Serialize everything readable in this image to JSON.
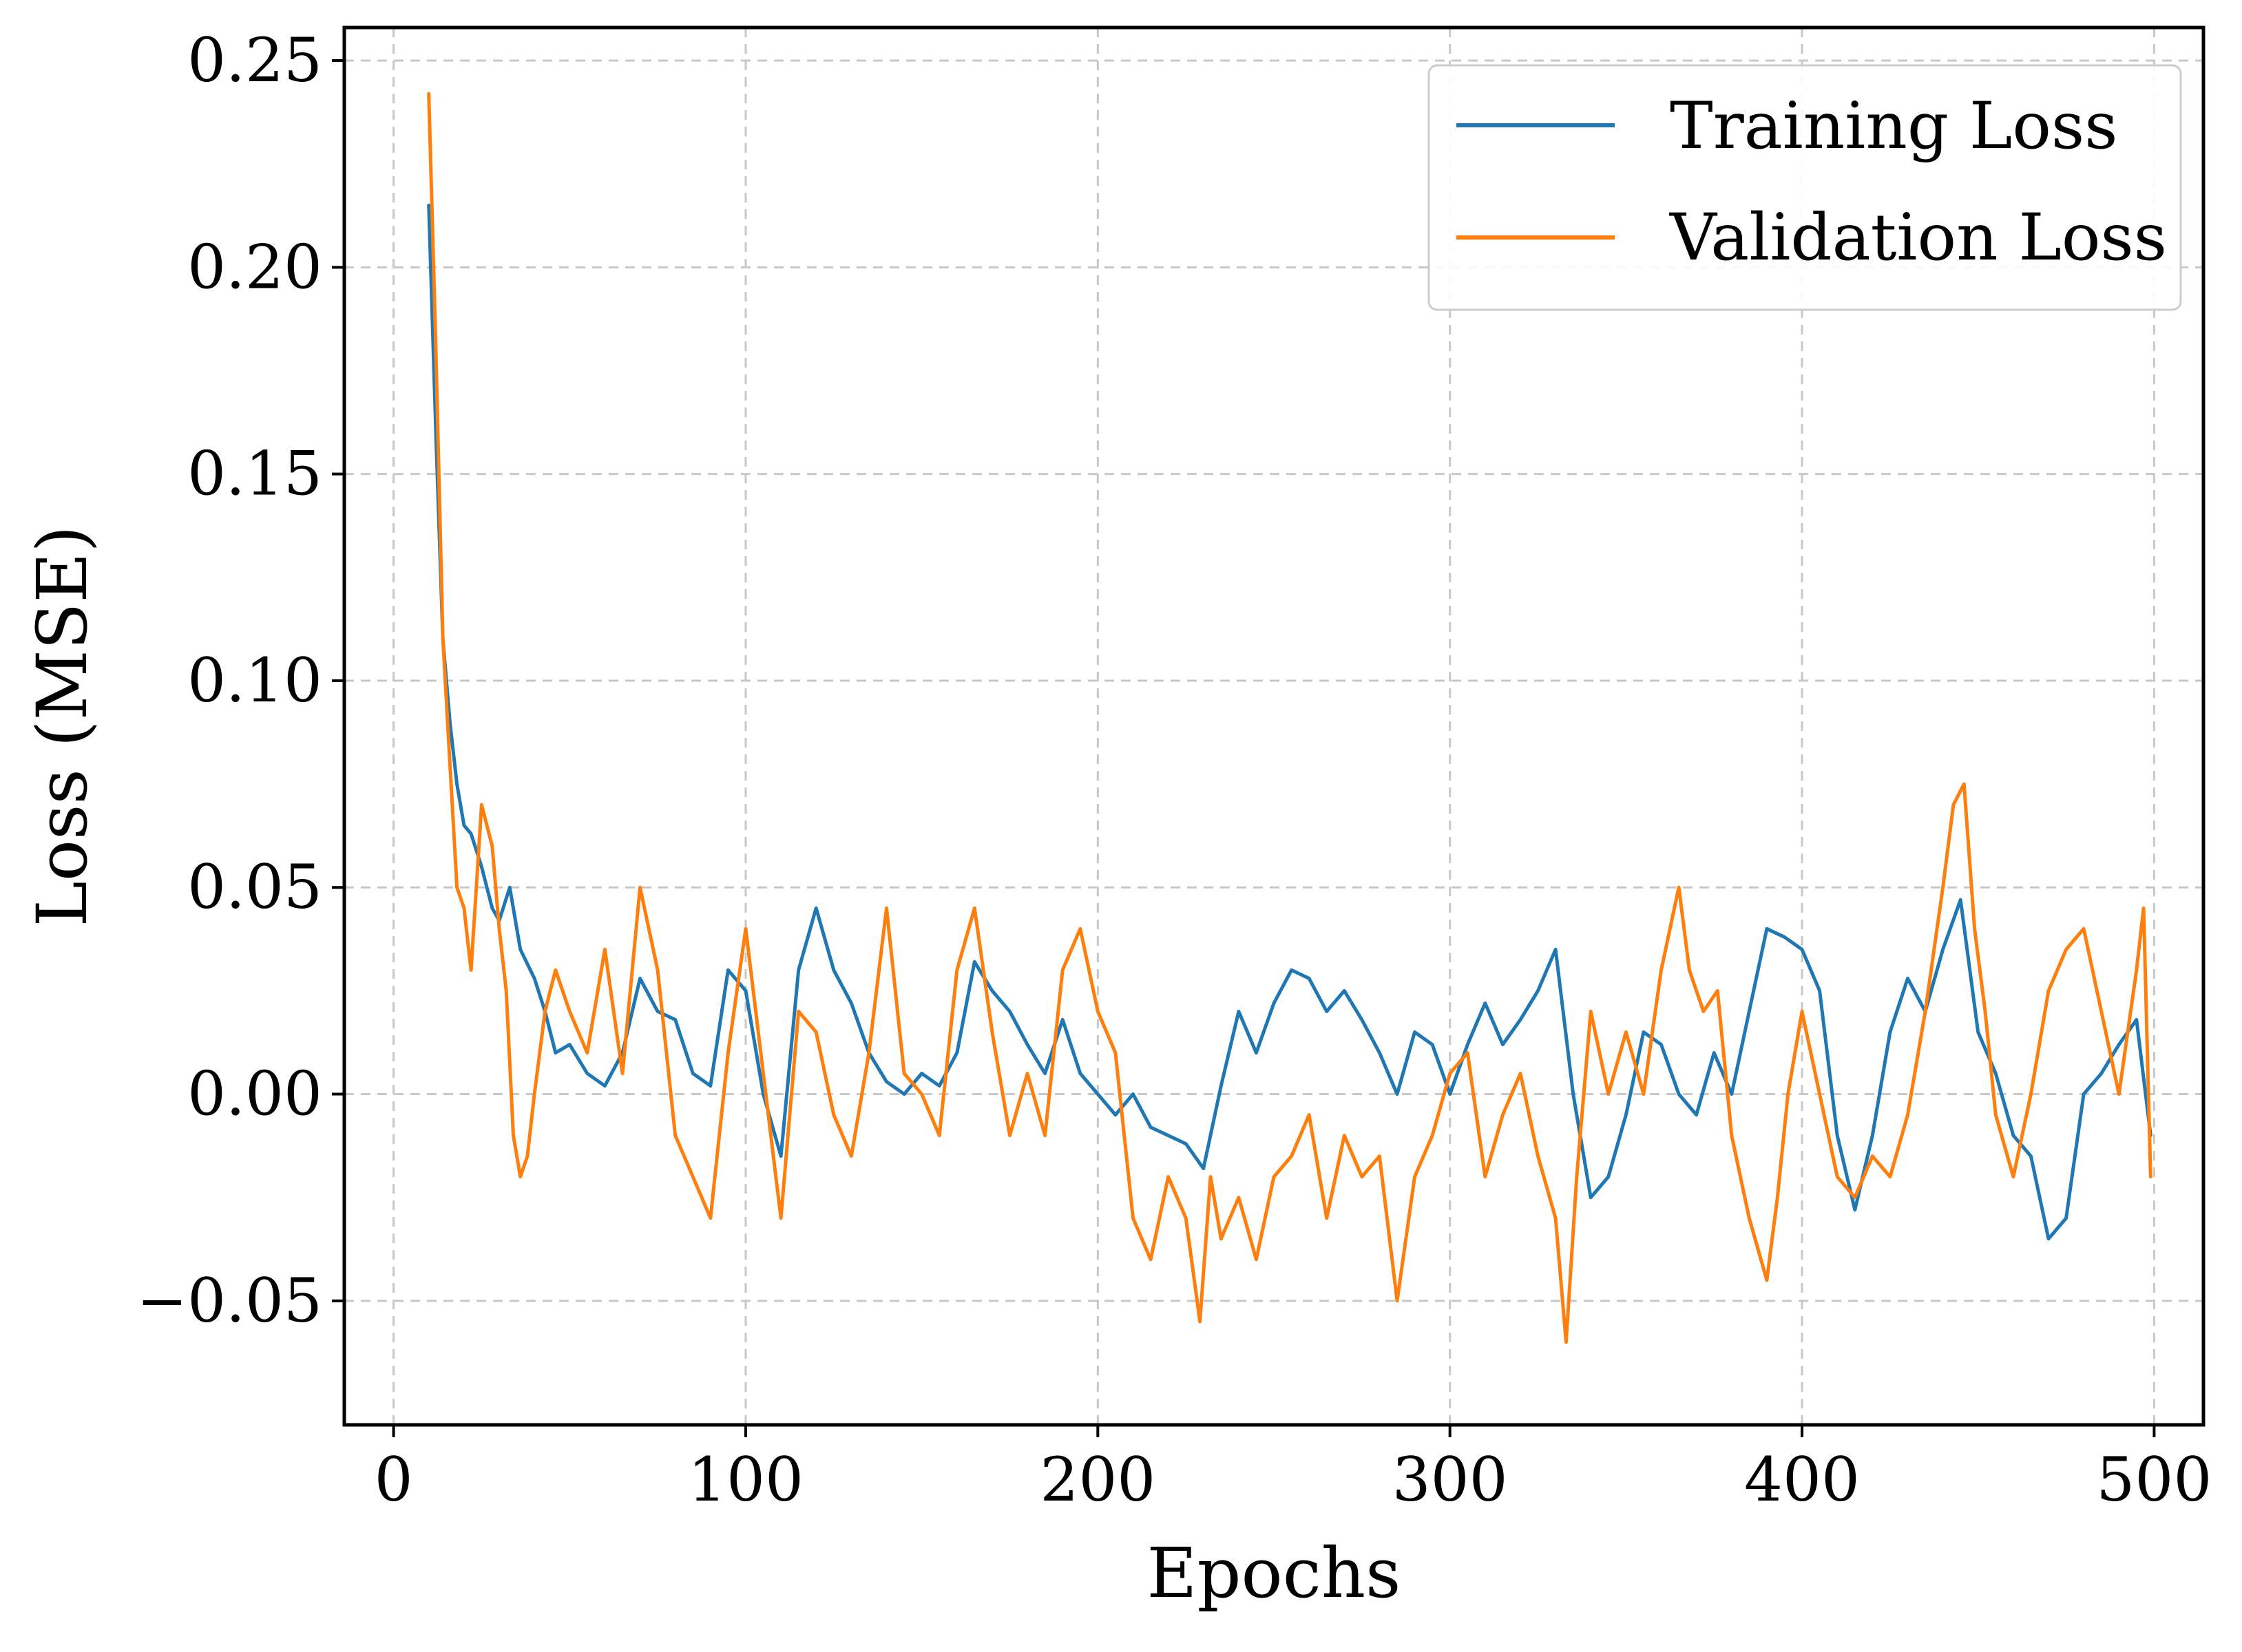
{
  "chart_data": {
    "type": "line",
    "title": "",
    "xlabel": "Epochs",
    "ylabel": "Loss (MSE)",
    "xlim": [
      -14,
      514
    ],
    "ylim": [
      -0.08,
      0.258
    ],
    "xticks": [
      0,
      100,
      200,
      300,
      400,
      500
    ],
    "xtick_labels": [
      "0",
      "100",
      "200",
      "300",
      "400",
      "500"
    ],
    "yticks": [
      -0.05,
      0.0,
      0.05,
      0.1,
      0.15,
      0.2,
      0.25
    ],
    "ytick_labels": [
      "−0.05",
      "0.00",
      "0.05",
      "0.10",
      "0.15",
      "0.20",
      "0.25"
    ],
    "grid": true,
    "legend_position": "top-right",
    "series": [
      {
        "name": "Training Loss",
        "color": "#1f77b4",
        "x": [
          10,
          12,
          14,
          16,
          18,
          20,
          22,
          25,
          28,
          30,
          33,
          36,
          40,
          43,
          46,
          50,
          55,
          60,
          65,
          70,
          75,
          80,
          85,
          90,
          95,
          100,
          105,
          110,
          115,
          120,
          125,
          130,
          135,
          140,
          145,
          150,
          155,
          160,
          165,
          170,
          175,
          180,
          185,
          190,
          195,
          200,
          205,
          210,
          215,
          220,
          225,
          230,
          235,
          240,
          245,
          250,
          255,
          260,
          265,
          270,
          275,
          280,
          285,
          290,
          295,
          300,
          305,
          310,
          315,
          320,
          325,
          330,
          335,
          340,
          345,
          350,
          355,
          360,
          365,
          370,
          375,
          380,
          385,
          390,
          395,
          400,
          405,
          410,
          415,
          420,
          425,
          430,
          435,
          440,
          445,
          450,
          455,
          460,
          465,
          470,
          475,
          480,
          485,
          490,
          495,
          499
        ],
        "y": [
          0.215,
          0.16,
          0.11,
          0.09,
          0.075,
          0.065,
          0.063,
          0.055,
          0.045,
          0.042,
          0.05,
          0.035,
          0.028,
          0.02,
          0.01,
          0.012,
          0.005,
          0.002,
          0.01,
          0.028,
          0.02,
          0.018,
          0.005,
          0.002,
          0.03,
          0.025,
          0.0,
          -0.015,
          0.03,
          0.045,
          0.03,
          0.022,
          0.01,
          0.003,
          0.0,
          0.005,
          0.002,
          0.01,
          0.032,
          0.025,
          0.02,
          0.012,
          0.005,
          0.018,
          0.005,
          0.0,
          -0.005,
          0.0,
          -0.008,
          -0.01,
          -0.012,
          -0.018,
          0.002,
          0.02,
          0.01,
          0.022,
          0.03,
          0.028,
          0.02,
          0.025,
          0.018,
          0.01,
          0.0,
          0.015,
          0.012,
          0.0,
          0.012,
          0.022,
          0.012,
          0.018,
          0.025,
          0.035,
          0.0,
          -0.025,
          -0.02,
          -0.005,
          0.015,
          0.012,
          0.0,
          -0.005,
          0.01,
          0.0,
          0.02,
          0.04,
          0.038,
          0.035,
          0.025,
          -0.01,
          -0.028,
          -0.01,
          0.015,
          0.028,
          0.02,
          0.035,
          0.047,
          0.015,
          0.005,
          -0.01,
          -0.015,
          -0.035,
          -0.03,
          0.0,
          0.005,
          0.012,
          0.018,
          -0.01
        ]
      },
      {
        "name": "Validation Loss",
        "color": "#ff7f0e",
        "x": [
          10,
          12,
          14,
          16,
          18,
          20,
          22,
          25,
          28,
          30,
          32,
          34,
          36,
          38,
          40,
          43,
          46,
          50,
          55,
          60,
          65,
          70,
          75,
          80,
          85,
          90,
          95,
          100,
          105,
          110,
          115,
          120,
          125,
          130,
          135,
          140,
          145,
          150,
          155,
          160,
          165,
          170,
          175,
          180,
          185,
          190,
          195,
          200,
          205,
          210,
          215,
          220,
          225,
          229,
          232,
          235,
          240,
          245,
          250,
          255,
          260,
          265,
          270,
          275,
          280,
          285,
          290,
          295,
          300,
          305,
          310,
          315,
          320,
          325,
          330,
          333,
          336,
          340,
          345,
          350,
          355,
          360,
          365,
          368,
          372,
          376,
          380,
          385,
          390,
          393,
          396,
          400,
          405,
          410,
          415,
          420,
          425,
          430,
          435,
          440,
          443,
          446,
          449,
          452,
          455,
          460,
          465,
          470,
          475,
          480,
          485,
          490,
          495,
          497,
          499
        ],
        "y": [
          0.242,
          0.18,
          0.11,
          0.08,
          0.05,
          0.045,
          0.03,
          0.07,
          0.06,
          0.04,
          0.025,
          -0.01,
          -0.02,
          -0.015,
          0.0,
          0.02,
          0.03,
          0.02,
          0.01,
          0.035,
          0.005,
          0.05,
          0.03,
          -0.01,
          -0.02,
          -0.03,
          0.01,
          0.04,
          0.005,
          -0.03,
          0.02,
          0.015,
          -0.005,
          -0.015,
          0.01,
          0.045,
          0.005,
          0.0,
          -0.01,
          0.03,
          0.045,
          0.015,
          -0.01,
          0.005,
          -0.01,
          0.03,
          0.04,
          0.02,
          0.01,
          -0.03,
          -0.04,
          -0.02,
          -0.03,
          -0.055,
          -0.02,
          -0.035,
          -0.025,
          -0.04,
          -0.02,
          -0.015,
          -0.005,
          -0.03,
          -0.01,
          -0.02,
          -0.015,
          -0.05,
          -0.02,
          -0.01,
          0.005,
          0.01,
          -0.02,
          -0.005,
          0.005,
          -0.015,
          -0.03,
          -0.06,
          -0.02,
          0.02,
          0.0,
          0.015,
          0.0,
          0.03,
          0.05,
          0.03,
          0.02,
          0.025,
          -0.01,
          -0.03,
          -0.045,
          -0.025,
          0.0,
          0.02,
          0.0,
          -0.02,
          -0.025,
          -0.015,
          -0.02,
          -0.005,
          0.02,
          0.05,
          0.07,
          0.075,
          0.04,
          0.02,
          -0.005,
          -0.02,
          0.0,
          0.025,
          0.035,
          0.04,
          0.02,
          0.0,
          0.03,
          0.045,
          -0.02
        ]
      }
    ]
  }
}
